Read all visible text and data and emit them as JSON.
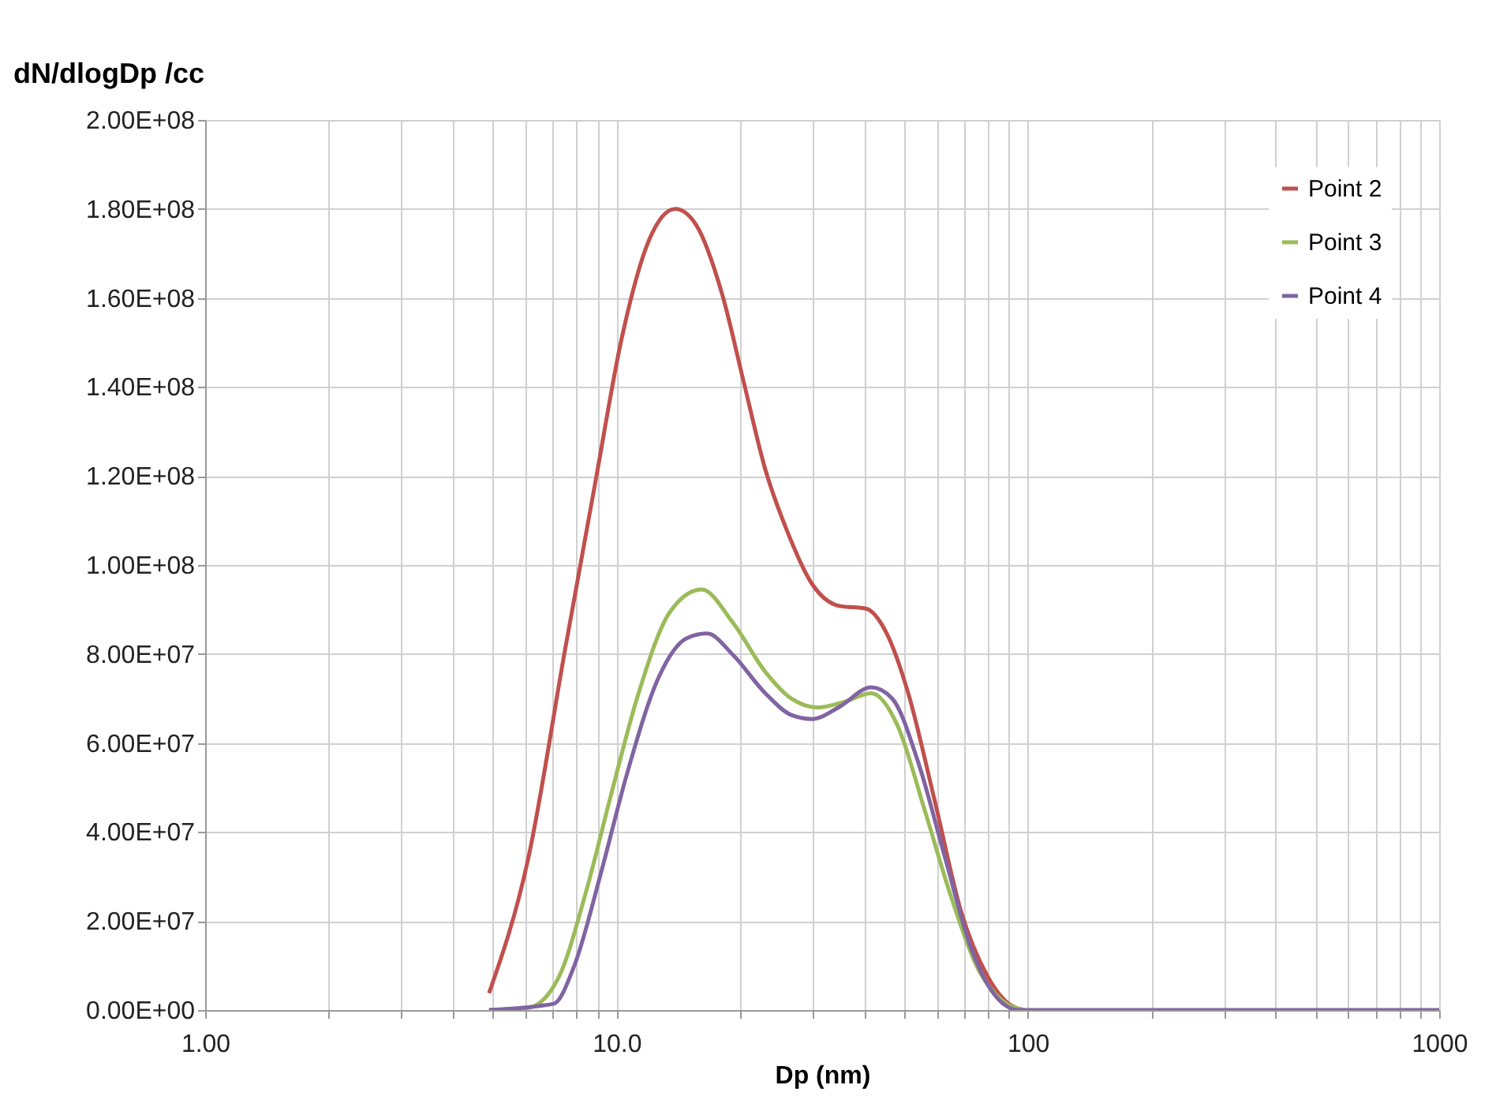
{
  "chart_data": {
    "type": "line",
    "xlabel": "Dp (nm)",
    "ylabel": "dN/dlogDp /cc",
    "log": "x",
    "grid": true,
    "legend": "top right",
    "marker": "none",
    "line_style": "solid",
    "xlim": [
      1,
      1000
    ],
    "xticks": [
      {
        "value": 1,
        "label": "1.00"
      },
      {
        "value": 2,
        "label": null
      },
      {
        "value": 3,
        "label": null
      },
      {
        "value": 4,
        "label": null
      },
      {
        "value": 5,
        "label": null
      },
      {
        "value": 6,
        "label": null
      },
      {
        "value": 7,
        "label": null
      },
      {
        "value": 8,
        "label": null
      },
      {
        "value": 9,
        "label": null
      },
      {
        "value": 10,
        "label": "10.0"
      },
      {
        "value": 20,
        "label": null
      },
      {
        "value": 30,
        "label": null
      },
      {
        "value": 40,
        "label": null
      },
      {
        "value": 50,
        "label": null
      },
      {
        "value": 60,
        "label": null
      },
      {
        "value": 70,
        "label": null
      },
      {
        "value": 80,
        "label": null
      },
      {
        "value": 90,
        "label": null
      },
      {
        "value": 100,
        "label": "100"
      },
      {
        "value": 200,
        "label": null
      },
      {
        "value": 300,
        "label": null
      },
      {
        "value": 400,
        "label": null
      },
      {
        "value": 500,
        "label": null
      },
      {
        "value": 600,
        "label": null
      },
      {
        "value": 700,
        "label": null
      },
      {
        "value": 800,
        "label": null
      },
      {
        "value": 900,
        "label": null
      },
      {
        "value": 1000,
        "label": "1000"
      }
    ],
    "ylim": [
      0,
      200000000
    ],
    "yticks": [
      {
        "value": 0,
        "label": "0.00E+00"
      },
      {
        "value": 20000000,
        "label": "2.00E+07"
      },
      {
        "value": 40000000,
        "label": "4.00E+07"
      },
      {
        "value": 60000000,
        "label": "6.00E+07"
      },
      {
        "value": 80000000,
        "label": "8.00E+07"
      },
      {
        "value": 100000000,
        "label": "1.00E+08"
      },
      {
        "value": 120000000,
        "label": "1.20E+08"
      },
      {
        "value": 140000000,
        "label": "1.40E+08"
      },
      {
        "value": 160000000,
        "label": "1.60E+08"
      },
      {
        "value": 180000000,
        "label": "1.80E+08"
      },
      {
        "value": 200000000,
        "label": "2.00E+08"
      }
    ],
    "series": [
      {
        "name": "Point 2",
        "color": "#c0504d",
        "x": [
          4.9,
          6.1,
          7.5,
          8.9,
          10.3,
          12.0,
          13.9,
          15.6,
          18.1,
          20.4,
          23.0,
          25.9,
          29.9,
          34.8,
          40.4,
          45.4,
          51.2,
          59.5,
          68.8,
          79.9,
          89.9,
          98
        ],
        "values": [
          3800000,
          34000000,
          81000000,
          119000000,
          151000000,
          173000000,
          180000000,
          176500000,
          160600000,
          141000000,
          121500000,
          108000000,
          95700000,
          90800000,
          90200000,
          84600000,
          71200000,
          46700000,
          22200000,
          7500000,
          1400000,
          0
        ]
      },
      {
        "name": "Point 3",
        "color": "#9bbb59",
        "x": [
          4.9,
          6.1,
          7.25,
          8.4,
          9.74,
          11.3,
          13.5,
          16.1,
          19.2,
          23.0,
          26.6,
          30.9,
          35.9,
          41.6,
          48.3,
          55.9,
          64.8,
          75.0,
          87,
          98
        ],
        "values": [
          0,
          500000,
          7500000,
          26000000,
          49000000,
          71000000,
          89500000,
          94500000,
          87000000,
          76000000,
          70000000,
          68000000,
          69300000,
          71200000,
          63800000,
          45500000,
          26000000,
          10000000,
          2000000,
          0
        ]
      },
      {
        "name": "Point 4",
        "color": "#8064a2",
        "x": [
          4.9,
          7.03,
          7.9,
          9.18,
          10.6,
          12.7,
          14.8,
          16.6,
          19.2,
          23.0,
          26.6,
          29.9,
          34.8,
          41.6,
          46.8,
          54.3,
          62.8,
          73.0,
          84.5,
          95,
          200,
          500,
          1000
        ],
        "values": [
          0,
          1400000,
          10000000,
          31000000,
          53000000,
          75000000,
          83500000,
          84600000,
          79800000,
          71200000,
          66300000,
          65400000,
          68100000,
          72500000,
          70000000,
          55300000,
          34500000,
          13600000,
          2600000,
          0,
          0,
          0,
          0
        ]
      }
    ]
  }
}
